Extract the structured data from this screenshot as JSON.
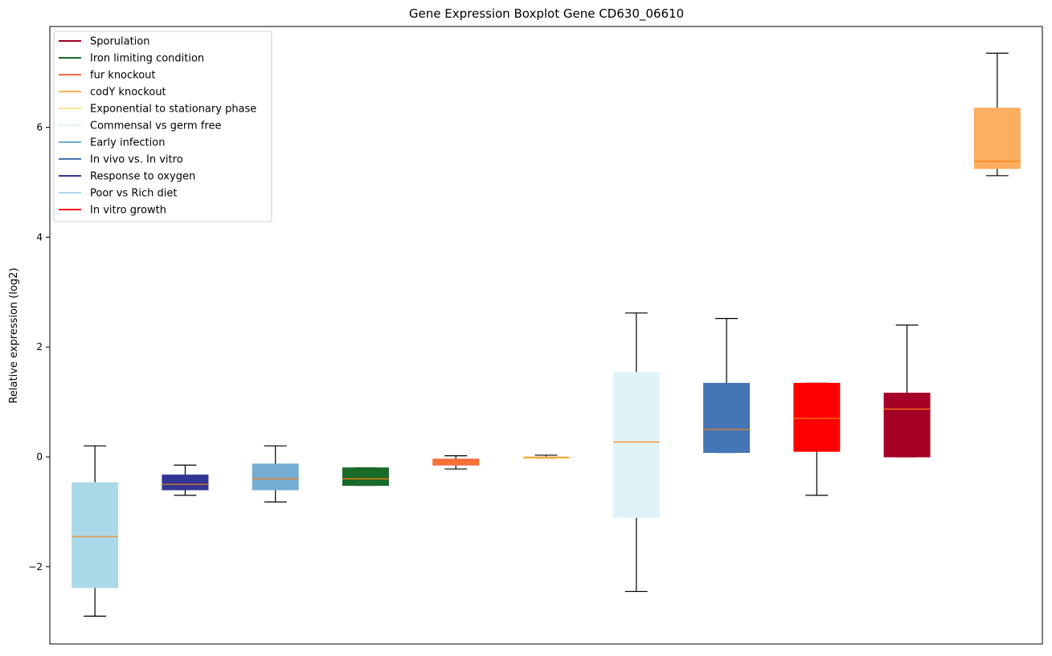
{
  "chart_data": {
    "type": "boxplot",
    "title": "Gene Expression Boxplot Gene CD630_06610",
    "xlabel": "",
    "ylabel": "Relative expression (log2)",
    "ylim": [
      -3.4,
      7.9
    ],
    "yticks": [
      -2,
      0,
      2,
      4,
      6
    ],
    "ytick_labels": [
      "−2",
      "0",
      "2",
      "4",
      "6"
    ],
    "grid": false,
    "legend_position": "upper-left",
    "legend": [
      {
        "label": "Sporulation",
        "color": "#a50026"
      },
      {
        "label": "Iron limiting condition",
        "color": "#1a6b2a"
      },
      {
        "label": "fur knockout",
        "color": "#f46d43"
      },
      {
        "label": "codY knockout",
        "color": "#fdae61"
      },
      {
        "label": "Exponential to stationary phase",
        "color": "#fee090"
      },
      {
        "label": "Commensal vs germ free",
        "color": "#e0f3f8"
      },
      {
        "label": "Early infection",
        "color": "#74add1"
      },
      {
        "label": "In vivo vs. In vitro",
        "color": "#4575b4"
      },
      {
        "label": "Response to oxygen",
        "color": "#313695"
      },
      {
        "label": "Poor vs Rich diet",
        "color": "#abd9e9"
      },
      {
        "label": "In vitro growth",
        "color": "#ff0000"
      }
    ],
    "boxes": [
      {
        "group": "Poor vs Rich diet",
        "color": "#abd9e9",
        "whisker_low": -2.9,
        "q1": -2.38,
        "median": -1.45,
        "q3": -0.47,
        "whisker_high": 0.2
      },
      {
        "group": "Response to oxygen",
        "color": "#313695",
        "whisker_low": -0.7,
        "q1": -0.6,
        "median": -0.5,
        "q3": -0.33,
        "whisker_high": -0.15
      },
      {
        "group": "Early infection",
        "color": "#74add1",
        "whisker_low": -0.82,
        "q1": -0.6,
        "median": -0.4,
        "q3": -0.13,
        "whisker_high": 0.2
      },
      {
        "group": "Iron limiting condition",
        "color": "#1a6b2a",
        "whisker_low": -0.52,
        "q1": -0.52,
        "median": -0.4,
        "q3": -0.2,
        "whisker_high": -0.2
      },
      {
        "group": "fur knockout",
        "color": "#f46d43",
        "whisker_low": -0.22,
        "q1": -0.15,
        "median": -0.1,
        "q3": -0.04,
        "whisker_high": 0.02
      },
      {
        "group": "Exponential to stationary phase",
        "color": "#fee090",
        "whisker_low": -0.03,
        "q1": -0.03,
        "median": -0.01,
        "q3": 0.0,
        "whisker_high": 0.03
      },
      {
        "group": "Commensal vs germ free",
        "color": "#e0f3f8",
        "whisker_low": -2.45,
        "q1": -1.1,
        "median": 0.27,
        "q3": 1.54,
        "whisker_high": 2.62
      },
      {
        "group": "In vivo vs. In vitro",
        "color": "#4575b4",
        "whisker_low": 0.08,
        "q1": 0.08,
        "median": 0.5,
        "q3": 1.34,
        "whisker_high": 2.52
      },
      {
        "group": "In vitro growth",
        "color": "#ff0000",
        "whisker_low": -0.7,
        "q1": 0.1,
        "median": 0.7,
        "q3": 1.34,
        "whisker_high": 1.34
      },
      {
        "group": "Sporulation",
        "color": "#a50026",
        "whisker_low": 0.0,
        "q1": 0.0,
        "median": 0.87,
        "q3": 1.16,
        "whisker_high": 2.4
      },
      {
        "group": "codY knockout",
        "color": "#fdae61",
        "whisker_low": 5.12,
        "q1": 5.25,
        "median": 5.38,
        "q3": 6.35,
        "whisker_high": 7.35
      }
    ],
    "median_color": "#ff7f0e"
  }
}
